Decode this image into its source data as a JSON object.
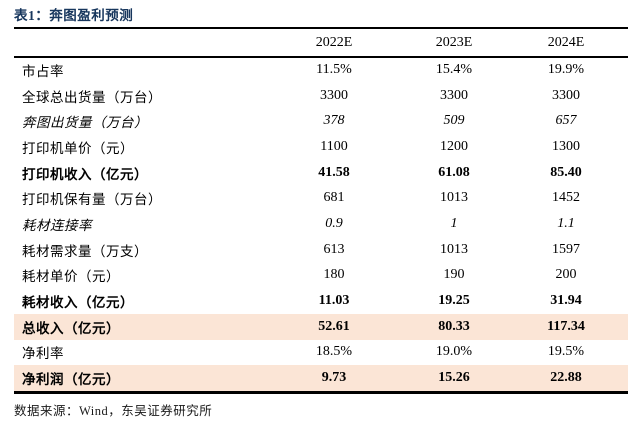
{
  "title": "表1：奔图盈利预测",
  "colors": {
    "title_text": "#17365D",
    "highlight_row_bg": "#FBE5D6",
    "rule": "#000000"
  },
  "table": {
    "columns": [
      "2022E",
      "2023E",
      "2024E"
    ],
    "rows": [
      {
        "label": "市占率",
        "values": [
          "11.5%",
          "15.4%",
          "19.9%"
        ],
        "style": "normal",
        "highlight": false
      },
      {
        "label": "全球总出货量（万台）",
        "values": [
          "3300",
          "3300",
          "3300"
        ],
        "style": "normal",
        "highlight": false
      },
      {
        "label": "奔图出货量（万台）",
        "values": [
          "378",
          "509",
          "657"
        ],
        "style": "italic",
        "highlight": false
      },
      {
        "label": "打印机单价（元）",
        "values": [
          "1100",
          "1200",
          "1300"
        ],
        "style": "normal",
        "highlight": false
      },
      {
        "label": "打印机收入（亿元）",
        "values": [
          "41.58",
          "61.08",
          "85.40"
        ],
        "style": "bold",
        "highlight": false
      },
      {
        "label": "打印机保有量（万台）",
        "values": [
          "681",
          "1013",
          "1452"
        ],
        "style": "normal",
        "highlight": false
      },
      {
        "label": "耗材连接率",
        "values": [
          "0.9",
          "1",
          "1.1"
        ],
        "style": "italic",
        "highlight": false
      },
      {
        "label": "耗材需求量（万支）",
        "values": [
          "613",
          "1013",
          "1597"
        ],
        "style": "normal",
        "highlight": false
      },
      {
        "label": "耗材单价（元）",
        "values": [
          "180",
          "190",
          "200"
        ],
        "style": "normal",
        "highlight": false
      },
      {
        "label": "耗材收入（亿元）",
        "values": [
          "11.03",
          "19.25",
          "31.94"
        ],
        "style": "bold",
        "highlight": false
      },
      {
        "label": "总收入（亿元）",
        "values": [
          "52.61",
          "80.33",
          "117.34"
        ],
        "style": "bold",
        "highlight": true
      },
      {
        "label": "净利率",
        "values": [
          "18.5%",
          "19.0%",
          "19.5%"
        ],
        "style": "normal",
        "highlight": false
      },
      {
        "label": "净利润（亿元）",
        "values": [
          "9.73",
          "15.26",
          "22.88"
        ],
        "style": "bold",
        "highlight": true
      }
    ]
  },
  "footer": "数据来源：Wind，东吴证券研究所"
}
